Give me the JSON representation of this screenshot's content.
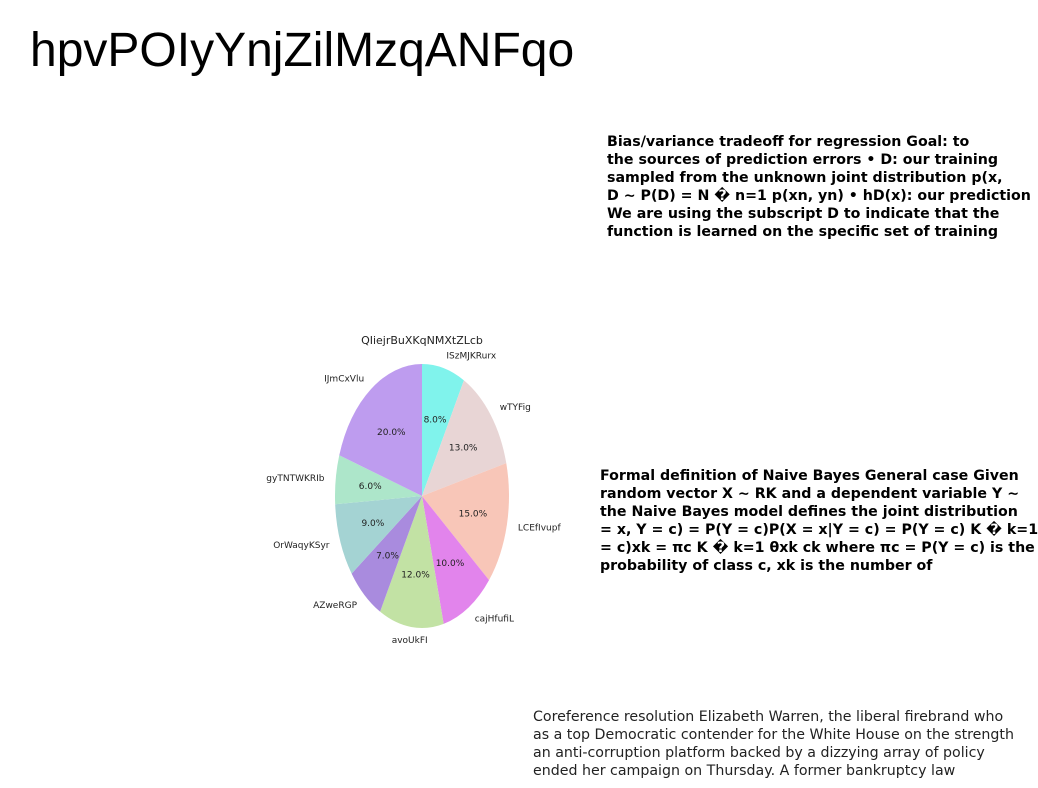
{
  "page": {
    "title": "hpvPOIyYnjZilMzqANFqo"
  },
  "text_blocks": {
    "bias_variance": [
      "Bias/variance tradeoff for regression Goal: to",
      "the sources of prediction errors • D: our training",
      "sampled from the unknown joint distribution p(x,",
      "D ∼ P(D) = N � n=1 p(xn, yn) • hD(x): our prediction",
      "We are using the subscript D to indicate that the",
      "function is learned on the specific set of training"
    ],
    "naive_bayes": [
      "Formal definition of Naive Bayes General case Given",
      "random vector X ∼ RK and a dependent variable Y ∼",
      "the Naive Bayes model defines the joint distribution",
      "= x, Y = c) = P(Y = c)P(X = x|Y = c) = P(Y = c) K � k=1",
      "= c)xk = πc K � k=1 θxk ck where πc = P(Y = c) is the",
      "probability of class c, xk is the number of"
    ],
    "coreference": [
      "Coreference resolution Elizabeth Warren, the liberal firebrand who",
      "as a top Democratic contender for the White House on the strength",
      "an anti-corruption platform backed by a dizzying array of policy",
      "ended her campaign on Thursday. A former bankruptcy law"
    ]
  },
  "chart_data": {
    "type": "pie",
    "title": "QIiejrBuXKqNMXtZLcb",
    "start_angle_deg": 90,
    "direction": "clockwise",
    "labels": [
      "ISzMJKRurx",
      "wTYFig",
      "LCEfIvupf",
      "cajHfufiL",
      "avoUkFI",
      "AZweRGP",
      "OrWaqyKSyr",
      "gyTNTWKRIb",
      "IJmCxVlu"
    ],
    "values": [
      8.0,
      13.0,
      15.0,
      10.0,
      12.0,
      7.0,
      9.0,
      6.0,
      20.0
    ],
    "pct_labels": [
      "8.0%",
      "13.0%",
      "15.0%",
      "10.0%",
      "12.0%",
      "7.0%",
      "9.0%",
      "6.0%",
      "20.0%"
    ],
    "colors": [
      "#80f3ec",
      "#e8d5d5",
      "#f8c6b8",
      "#e284ec",
      "#c2e2a4",
      "#a98bde",
      "#a4d3d3",
      "#ade6ca",
      "#be9cef"
    ]
  }
}
